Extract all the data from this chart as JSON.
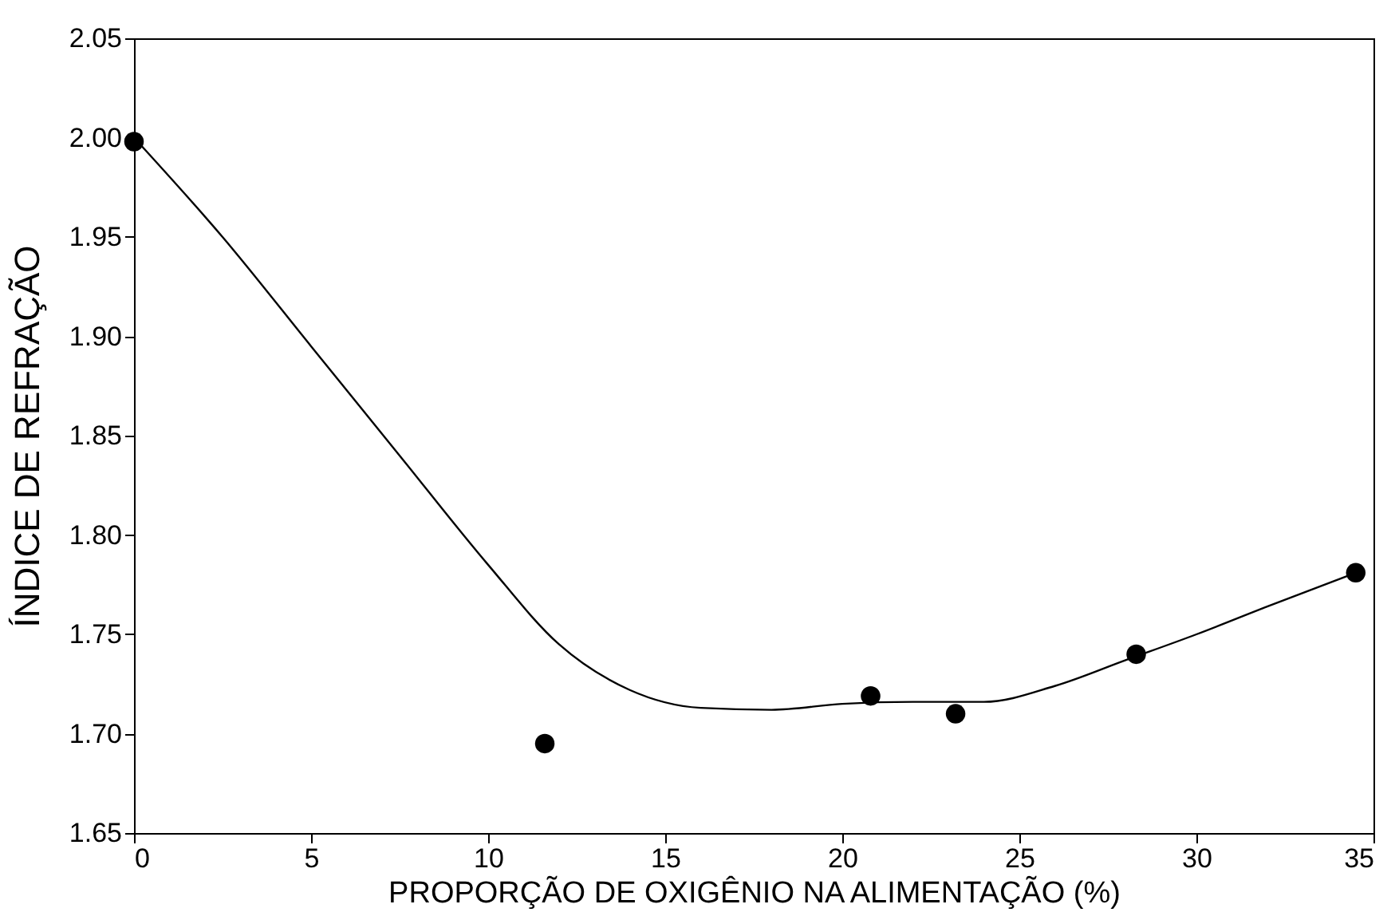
{
  "chart_data": {
    "type": "scatter",
    "xlabel": "PROPORÇÃO DE OXIGÊNIO NA ALIMENTAÇÃO (%)",
    "ylabel": "ÍNDICE DE REFRAÇÃO",
    "xlim": [
      0,
      35
    ],
    "xticks": [
      0,
      5,
      10,
      15,
      20,
      25,
      30,
      35
    ],
    "ylim": [
      1.65,
      2.05
    ],
    "yticks": [
      1.65,
      {
        "value": 1.7,
        "label": "1.70"
      },
      1.75,
      {
        "value": 1.8,
        "label": "1.80"
      },
      1.85,
      {
        "value": 1.9,
        "label": "1.90"
      },
      1.95,
      {
        "value": 2,
        "label": "2.00"
      },
      2.05
    ],
    "grid": false,
    "series": [
      {
        "color": "#000000",
        "marker": "circle",
        "x": [
          0,
          11.6,
          20.8,
          23.2,
          28.3,
          34.5
        ],
        "values": [
          1.998,
          1.695,
          1.719,
          1.71,
          1.74,
          1.781
        ]
      },
      {
        "type": "line",
        "color": "#000000",
        "marker": "none",
        "line_style": "solid",
        "x": [
          0,
          2.5,
          5,
          7.5,
          10,
          12,
          14,
          16,
          18,
          20,
          22,
          24,
          26,
          28,
          30,
          32,
          34.5
        ],
        "values": [
          2.0,
          1.95,
          1.895,
          1.84,
          1.785,
          1.745,
          1.722,
          1.713,
          1.712,
          1.715,
          1.716,
          1.716,
          1.724,
          1.737,
          1.75,
          1.764,
          1.781
        ]
      }
    ]
  }
}
